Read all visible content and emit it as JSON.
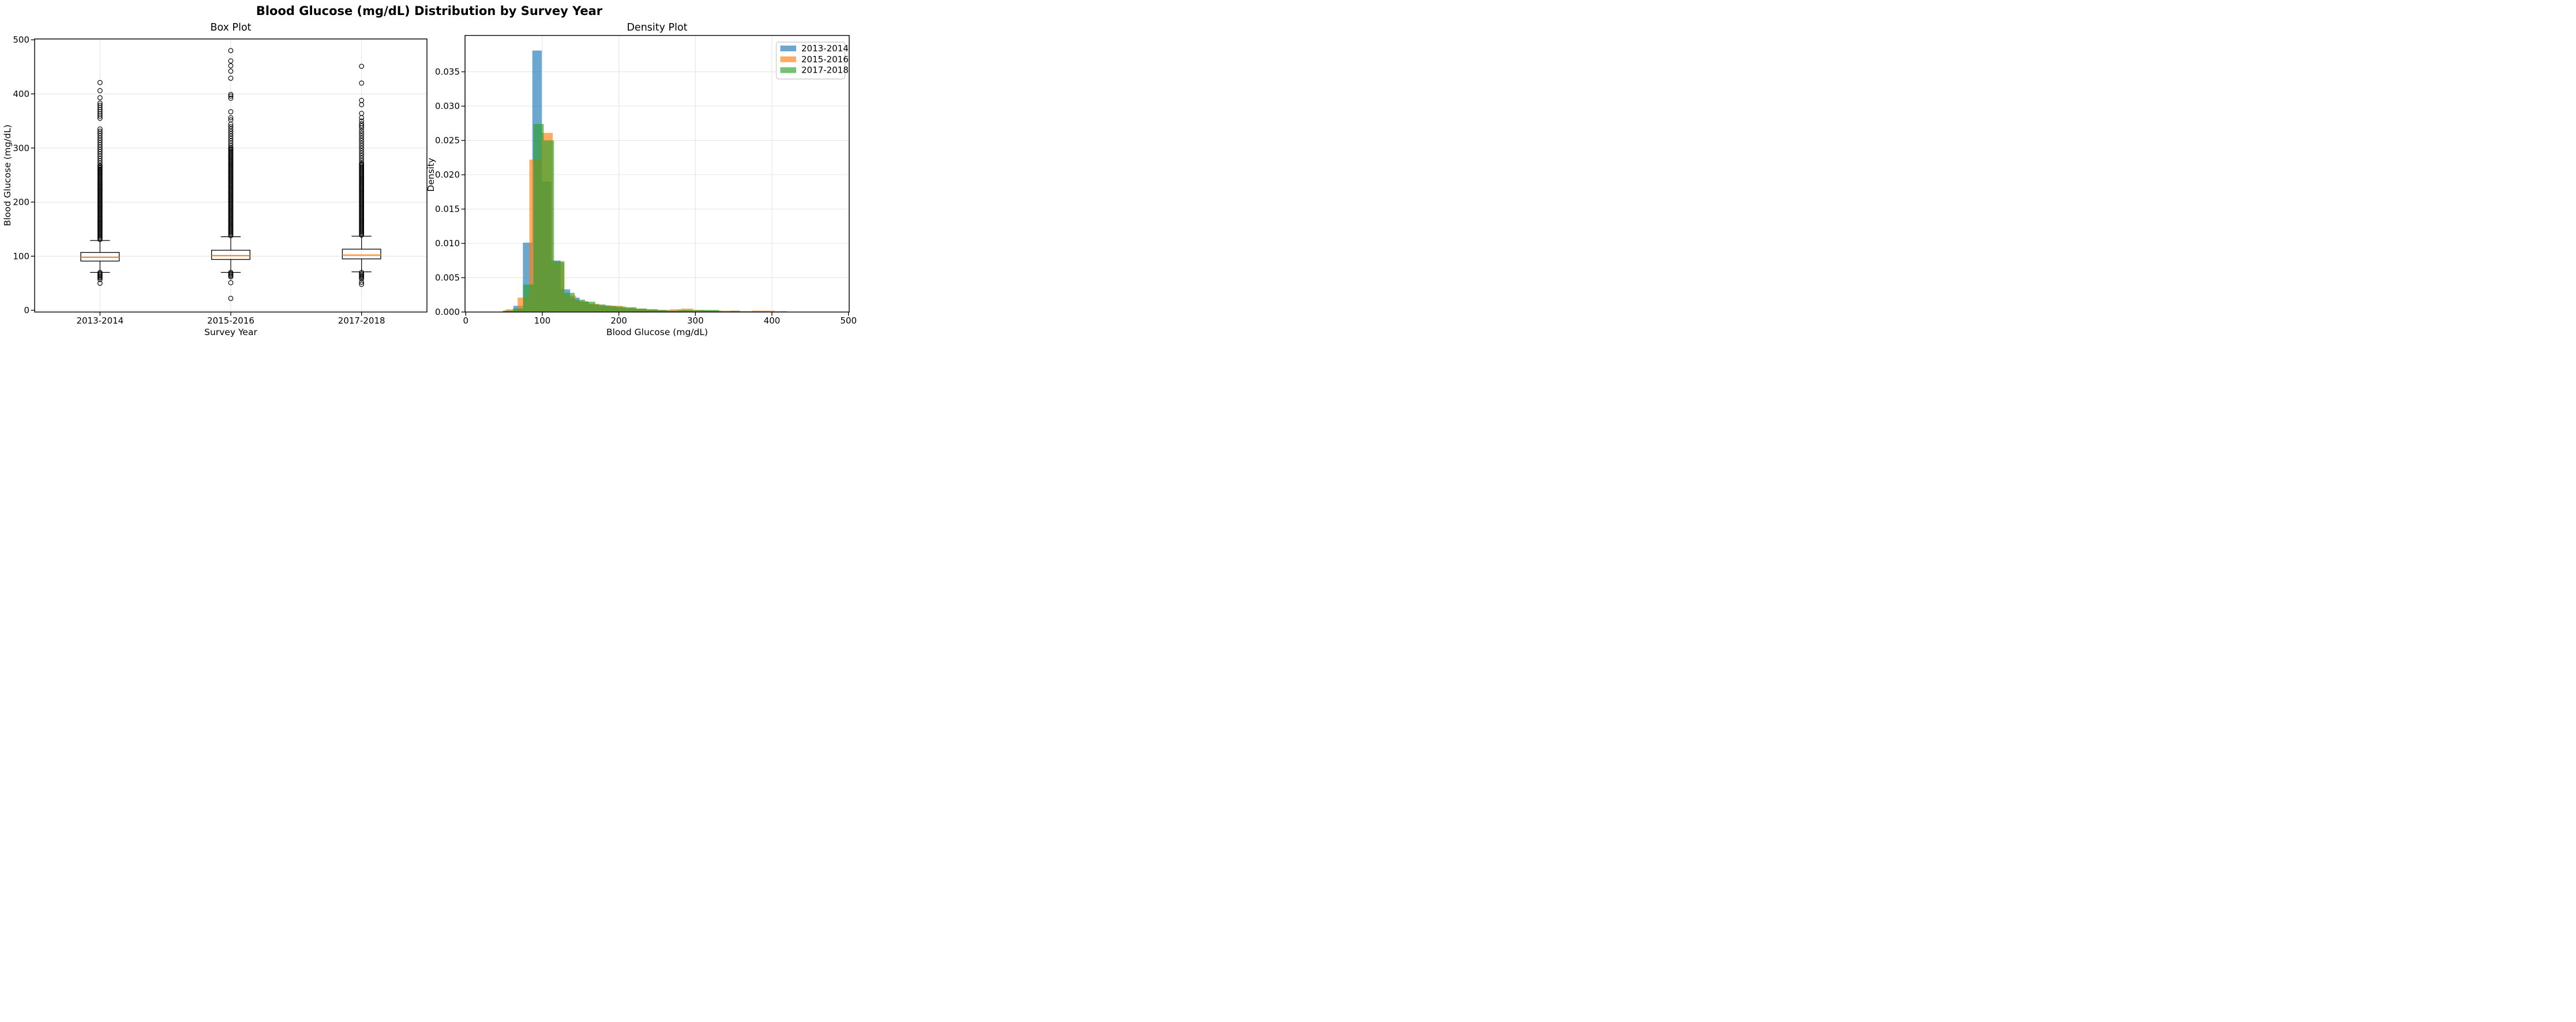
{
  "suptitle": "Blood Glucose (mg/dL) Distribution by Survey Year",
  "colors": {
    "series_blue": "#1f77b4",
    "series_orange": "#ff7f0e",
    "series_green": "#2ca02c",
    "median_line": "#ff7f0e",
    "grid": "#e4e4e4",
    "axis": "#000000",
    "legend_border": "#cfcfcf",
    "background": "#ffffff"
  },
  "chart_data": [
    {
      "type": "boxplot",
      "title": "Box Plot",
      "xlabel": "Survey Year",
      "ylabel": "Blood Glucose (mg/dL)",
      "ylim": [
        0,
        500
      ],
      "y_ticks": [
        0,
        100,
        200,
        300,
        400,
        500
      ],
      "grid": true,
      "categories": [
        "2013-2014",
        "2015-2016",
        "2017-2018"
      ],
      "boxes": [
        {
          "label": "2013-2014",
          "whisker_low": 70,
          "q1": 91,
          "median": 98,
          "q3": 107,
          "whisker_high": 129,
          "outliers_low": [
            70,
            68,
            66,
            64,
            62,
            60,
            57,
            50
          ],
          "outliers_high_sparse": [
            421,
            406,
            393,
            383,
            379,
            375,
            371,
            367,
            363,
            359,
            355
          ],
          "outliers_high_bands": [
            {
              "from": 268,
              "to": 338,
              "step": 4.2
            },
            {
              "from": 131,
              "to": 268,
              "step": 2.1
            }
          ]
        },
        {
          "label": "2015-2016",
          "whisker_low": 70,
          "q1": 94,
          "median": 101,
          "q3": 111,
          "whisker_high": 136,
          "outliers_low": [
            70,
            68,
            66,
            64,
            62,
            51,
            22
          ],
          "outliers_high_sparse": [
            480,
            461,
            452,
            442,
            429,
            399,
            396,
            392,
            367,
            356,
            352
          ],
          "outliers_high_bands": [
            {
              "from": 300,
              "to": 344,
              "step": 4.4
            },
            {
              "from": 138,
              "to": 300,
              "step": 2.05
            }
          ]
        },
        {
          "label": "2017-2018",
          "whisker_low": 71,
          "q1": 95,
          "median": 102,
          "q3": 113,
          "whisker_high": 137,
          "outliers_low": [
            70,
            67,
            65,
            63,
            61,
            58,
            52,
            48
          ],
          "outliers_high_sparse": [
            451,
            420,
            388,
            380,
            364,
            356,
            350,
            345,
            341,
            337
          ],
          "outliers_high_bands": [
            {
              "from": 272,
              "to": 332,
              "step": 4.6
            },
            {
              "from": 139,
              "to": 272,
              "step": 2.05
            }
          ]
        }
      ]
    },
    {
      "type": "histogram-density",
      "title": "Density Plot",
      "xlabel": "Blood Glucose (mg/dL)",
      "ylabel": "Density",
      "xlim": [
        0,
        500
      ],
      "ylim": [
        0,
        0.0401
      ],
      "x_ticks": [
        0,
        100,
        200,
        300,
        400,
        500
      ],
      "y_ticks": [
        0.0,
        0.005,
        0.01,
        0.015,
        0.02,
        0.025,
        0.03,
        0.035
      ],
      "y_tick_labels": [
        "0.000",
        "0.005",
        "0.010",
        "0.015",
        "0.020",
        "0.025",
        "0.030",
        "0.035"
      ],
      "grid": true,
      "legend_position": "upper right",
      "legend": [
        {
          "label": "2013-2014",
          "color": "#1f77b4"
        },
        {
          "label": "2015-2016",
          "color": "#ff7f0e"
        },
        {
          "label": "2017-2018",
          "color": "#2ca02c"
        }
      ],
      "series": [
        {
          "name": "2013-2014",
          "color": "#1f77b4",
          "opacity": 0.65,
          "bin_start": 50,
          "bin_width": 12.33,
          "heights": [
            0.0002,
            0.0009,
            0.0101,
            0.0381,
            0.019,
            0.0075,
            0.0033,
            0.0021,
            0.0015,
            0.0011,
            0.0009,
            0.0008,
            0.0006,
            0.0005,
            0.0004,
            0.0003,
            0.0003,
            0.0002,
            0.0002,
            0.0002,
            0.0001,
            0.0002,
            0.0002,
            0.0001,
            0.0002,
            0.0001,
            0.0001,
            0.0001,
            5e-05,
            0.0001
          ]
        },
        {
          "name": "2015-2016",
          "color": "#ff7f0e",
          "opacity": 0.65,
          "bin_start": 22,
          "bin_width": 15.27,
          "heights": [
            5e-05,
            5e-05,
            0.0004,
            0.0021,
            0.0222,
            0.0261,
            0.0072,
            0.0024,
            0.0016,
            0.0012,
            0.001,
            0.0009,
            0.0006,
            0.0005,
            0.0004,
            0.0003,
            0.0004,
            0.0005,
            0.0003,
            0.0002,
            0.0002,
            0.0002,
            0.0001,
            0.0002,
            0.0002,
            0.0001,
            4e-05,
            3e-05,
            3e-05,
            3e-05
          ]
        },
        {
          "name": "2017-2018",
          "color": "#2ca02c",
          "opacity": 0.65,
          "bin_start": 48,
          "bin_width": 13.47,
          "heights": [
            0.0002,
            0.0005,
            0.004,
            0.0274,
            0.025,
            0.0074,
            0.0028,
            0.0018,
            0.0015,
            0.0011,
            0.0009,
            0.0008,
            0.0007,
            0.0005,
            0.0004,
            0.0003,
            0.0002,
            0.0003,
            0.0003,
            0.0003,
            0.0003,
            0.0001,
            0.0001,
            0.0001,
            8e-05,
            6e-05,
            5e-05,
            4e-05,
            3e-05,
            3e-05
          ]
        }
      ]
    }
  ]
}
